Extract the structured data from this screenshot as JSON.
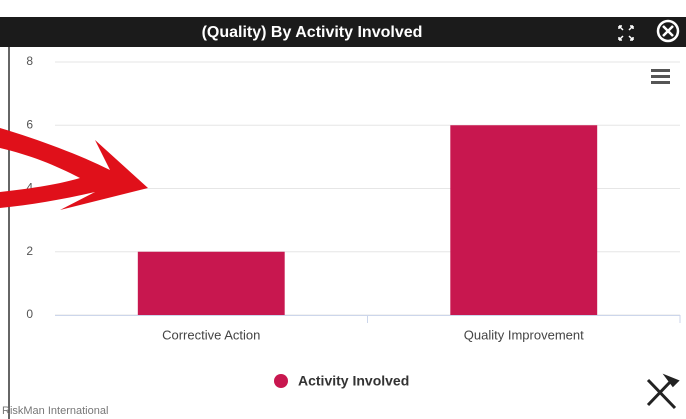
{
  "chart_data": {
    "type": "bar",
    "title": "(Quality) By Activity Involved",
    "categories": [
      "Corrective Action",
      "Quality Improvement"
    ],
    "series": [
      {
        "name": "Activity Involved",
        "color": "#c8174f",
        "values": [
          2,
          6
        ]
      }
    ],
    "ylim": [
      0,
      8
    ],
    "yticks": [
      0,
      2,
      4,
      6,
      8
    ],
    "grid": true,
    "credit": "RiskMan International"
  }
}
